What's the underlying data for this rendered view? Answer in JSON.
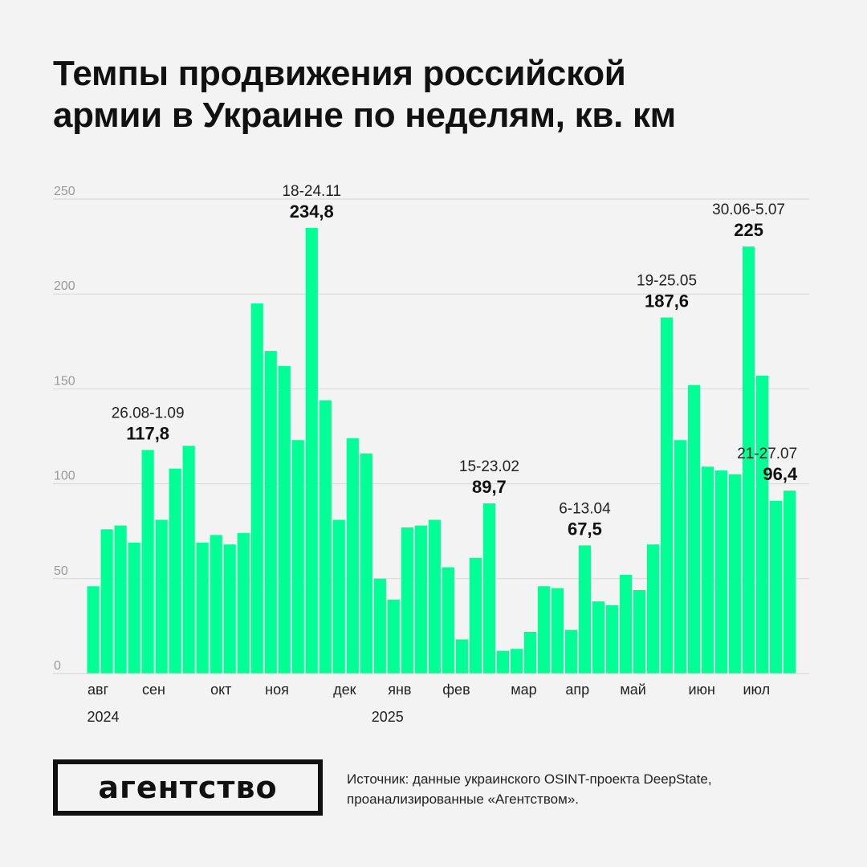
{
  "title": {
    "line1": "Темпы продвижения российской",
    "line2": "армии в Украине по неделям, кв. км"
  },
  "chart_data": {
    "type": "bar",
    "ylim": [
      0,
      250
    ],
    "y_ticks": [
      0,
      50,
      100,
      150,
      200,
      250
    ],
    "grid": true,
    "bar_color": "#00ff95",
    "values": [
      46,
      76,
      78,
      69,
      117.8,
      81,
      108,
      120,
      69,
      73,
      68,
      74,
      195,
      170,
      162,
      123,
      234.8,
      144,
      81,
      124,
      116,
      50,
      39,
      77,
      78,
      81,
      56,
      18,
      61,
      89.7,
      12,
      13,
      22,
      46,
      45,
      23,
      67.5,
      38,
      36,
      52,
      44,
      68,
      187.6,
      123,
      152,
      109,
      107,
      105,
      225,
      157,
      91,
      96.4
    ],
    "month_labels": [
      {
        "label": "авг",
        "bar": 0
      },
      {
        "label": "сен",
        "bar": 4
      },
      {
        "label": "окт",
        "bar": 9
      },
      {
        "label": "ноя",
        "bar": 13
      },
      {
        "label": "дек",
        "bar": 18
      },
      {
        "label": "янв",
        "bar": 22
      },
      {
        "label": "фев",
        "bar": 26
      },
      {
        "label": "мар",
        "bar": 31
      },
      {
        "label": "апр",
        "bar": 35
      },
      {
        "label": "май",
        "bar": 39
      },
      {
        "label": "июн",
        "bar": 44
      },
      {
        "label": "июл",
        "bar": 48
      }
    ],
    "year_labels": [
      {
        "label": "2024",
        "bar": 0
      },
      {
        "label": "2025",
        "bar": 22
      }
    ],
    "annotations": [
      {
        "bar": 4,
        "period": "26.08-1.09",
        "value": "117,8"
      },
      {
        "bar": 16,
        "period": "18-24.11",
        "value": "234,8"
      },
      {
        "bar": 29,
        "period": "15-23.02",
        "value": "89,7"
      },
      {
        "bar": 36,
        "period": "6-13.04",
        "value": "67,5"
      },
      {
        "bar": 42,
        "period": "19-25.05",
        "value": "187,6"
      },
      {
        "bar": 48,
        "period": "30.06-5.07",
        "value": "225"
      },
      {
        "bar": 51,
        "period": "21-27.07",
        "value": "96,4"
      }
    ]
  },
  "logo": {
    "text": "агентство"
  },
  "source": {
    "line1": "Источник: данные украинского OSINT-проекта DeepState,",
    "line2": "проанализированные «Агентством»."
  }
}
